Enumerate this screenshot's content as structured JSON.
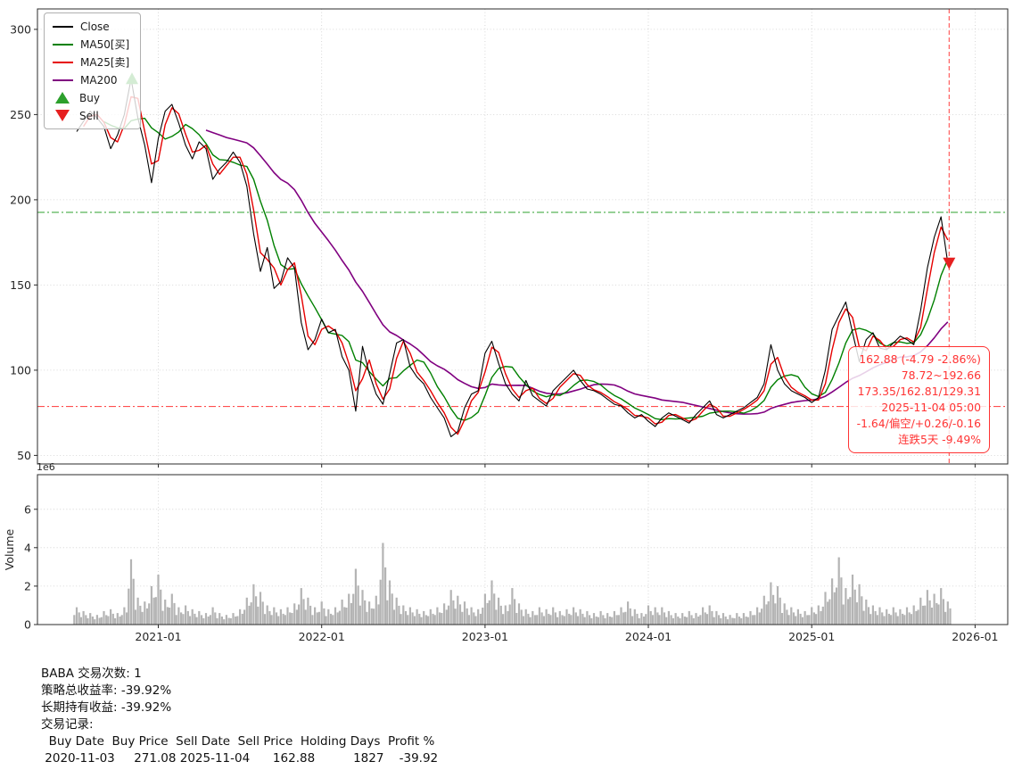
{
  "chart_data": {
    "type": "line",
    "symbol": "BABA",
    "x_ticks": [
      "2021-01",
      "2022-01",
      "2023-01",
      "2024-01",
      "2025-01",
      "2026-01"
    ],
    "x_range_years": [
      2020.26,
      2026.2
    ],
    "price_axis": {
      "ticks": [
        50,
        100,
        150,
        200,
        250,
        300
      ],
      "range": [
        45,
        312
      ]
    },
    "volume_axis": {
      "ticks": [
        0,
        2,
        4,
        6
      ],
      "range_e6": [
        0,
        7.8
      ],
      "scale_label": "1e6",
      "ylabel": "Volume"
    },
    "series_start": "2020-07-01",
    "step_months": 0.5,
    "close": [
      240,
      246,
      252,
      248,
      243,
      230,
      238,
      250,
      271,
      248,
      232,
      210,
      236,
      252,
      256,
      245,
      232,
      224,
      234,
      230,
      212,
      218,
      222,
      228,
      222,
      208,
      180,
      158,
      172,
      148,
      152,
      166,
      160,
      128,
      112,
      118,
      130,
      122,
      124,
      108,
      100,
      76,
      114,
      98,
      86,
      80,
      98,
      116,
      118,
      102,
      96,
      92,
      84,
      78,
      72,
      61,
      64,
      78,
      86,
      88,
      110,
      117,
      104,
      92,
      86,
      82,
      94,
      85,
      82,
      79,
      88,
      92,
      96,
      100,
      94,
      89,
      88,
      86,
      83,
      80,
      79,
      75,
      72,
      74,
      70,
      67,
      72,
      75,
      73,
      71,
      69,
      74,
      78,
      82,
      74,
      72,
      74,
      76,
      78,
      81,
      84,
      92,
      115,
      100,
      92,
      88,
      86,
      84,
      81,
      84,
      100,
      124,
      132,
      140,
      122,
      105,
      118,
      122,
      113,
      112,
      116,
      120,
      118,
      115,
      135,
      160,
      178,
      190,
      162.88
    ],
    "volume_e6": [
      0.9,
      0.7,
      0.6,
      0.5,
      0.7,
      0.8,
      0.6,
      0.9,
      3.4,
      1.4,
      1.2,
      2.0,
      2.6,
      1.3,
      1.6,
      0.9,
      1.0,
      0.8,
      0.7,
      0.6,
      0.9,
      0.6,
      0.5,
      0.6,
      0.8,
      1.4,
      2.1,
      1.7,
      1.0,
      0.9,
      0.8,
      0.9,
      1.1,
      1.9,
      1.4,
      0.9,
      1.2,
      0.8,
      0.9,
      1.3,
      1.6,
      2.9,
      1.8,
      1.2,
      1.5,
      4.25,
      2.3,
      1.4,
      1.0,
      0.9,
      0.8,
      0.7,
      0.8,
      0.9,
      1.1,
      1.8,
      1.5,
      1.2,
      0.9,
      0.8,
      1.6,
      2.3,
      1.4,
      1.0,
      1.9,
      1.1,
      0.8,
      0.7,
      0.9,
      0.8,
      0.9,
      0.7,
      0.8,
      0.9,
      0.8,
      0.7,
      0.6,
      0.7,
      0.6,
      0.7,
      0.9,
      1.2,
      0.8,
      0.6,
      1.0,
      0.9,
      0.9,
      0.7,
      0.6,
      0.6,
      0.7,
      0.6,
      0.9,
      1.0,
      0.7,
      0.6,
      0.5,
      0.6,
      0.6,
      0.7,
      0.9,
      1.5,
      2.2,
      2.0,
      1.1,
      0.9,
      0.8,
      0.7,
      0.9,
      1.0,
      1.7,
      2.4,
      3.5,
      1.9,
      2.6,
      2.1,
      1.3,
      1.0,
      0.9,
      0.8,
      0.9,
      0.8,
      0.9,
      1.0,
      1.4,
      1.8,
      1.6,
      1.9,
      1.2
    ],
    "ma_windows": {
      "ma25": 2,
      "ma50": 5,
      "ma200": 20
    },
    "colors": {
      "close": "#000000",
      "ma25": "#e60000",
      "ma50": "#008000",
      "ma200": "#800080",
      "buy": "#2ca02c",
      "sell": "#e62020",
      "volume_bar": "#b4b4b4",
      "grid": "#cdcdcd"
    },
    "hlines": [
      {
        "value": 192.66,
        "color": "#2ca02c",
        "style": "dashdot"
      },
      {
        "value": 78.72,
        "color": "#ff5050",
        "style": "dashdot"
      }
    ],
    "vline": {
      "date": "2025-11-04",
      "color": "#ff5050",
      "style": "dashed"
    },
    "markers": {
      "buy": {
        "date": "2020-11-03",
        "price": 271.08
      },
      "sell": {
        "date": "2025-11-04",
        "price": 162.88
      }
    },
    "final_values": {
      "close": 162.88,
      "change": "-4.79 -2.86%",
      "range_low": 78.72,
      "range_high": 192.66,
      "ma25": 173.35,
      "ma50": 162.81,
      "ma200": 129.31,
      "datetime": "2025-11-04 05:00",
      "streak": "连跌5天 -9.49%"
    }
  },
  "legend": {
    "items": [
      {
        "label": "Close",
        "color": "#000000",
        "type": "line"
      },
      {
        "label": "MA50[买]",
        "color": "#008000",
        "type": "line"
      },
      {
        "label": "MA25[卖]",
        "color": "#e60000",
        "type": "line"
      },
      {
        "label": "MA200",
        "color": "#800080",
        "type": "line"
      },
      {
        "label": "Buy",
        "color": "#2ca02c",
        "type": "triangle-up"
      },
      {
        "label": "Sell",
        "color": "#e62020",
        "type": "triangle-down"
      }
    ]
  },
  "annotation": {
    "color": "#ff3333",
    "lines": [
      "162.88 (-4.79 -2.86%)",
      "78.72~192.66",
      "173.35/162.81/129.31",
      "2025-11-04 05:00",
      "-1.64/偏空/+0.26/-0.16",
      "连跌5天 -9.49%"
    ]
  },
  "summary": {
    "symbol": "BABA",
    "trade_count": 1,
    "strategy_return_pct": -39.92,
    "buy_hold_return_pct": -39.92,
    "table": {
      "headers": [
        "Buy Date",
        "Buy Price",
        "Sell Date",
        "Sell Price",
        "Holding Days",
        "Profit %"
      ],
      "rows": [
        [
          "2020-11-03",
          "271.08",
          "2025-11-04",
          "162.88",
          "1827",
          "-39.92"
        ]
      ]
    },
    "lines": [
      "BABA 交易次数: 1",
      "策略总收益率: -39.92%",
      "长期持有收益: -39.92%",
      "交易记录:",
      "  Buy Date  Buy Price  Sell Date  Sell Price  Holding Days  Profit %",
      " 2020-11-03     271.08 2025-11-04      162.88          1827    -39.92"
    ]
  }
}
